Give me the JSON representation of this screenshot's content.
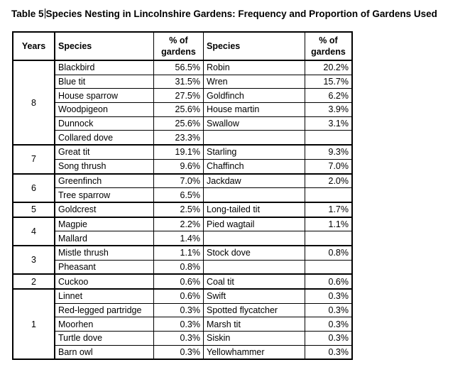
{
  "caption": {
    "prefix": "Table 5",
    "text": "Species Nesting in Lincolnshire Gardens: Frequency and Proportion of Gardens Used"
  },
  "headers": {
    "years": "Years",
    "species_left": "Species",
    "pct_left_line1": "% of",
    "pct_left_line2": "gardens",
    "species_right": "Species",
    "pct_right_line1": "% of",
    "pct_right_line2": "gardens"
  },
  "groups": [
    {
      "years": "8",
      "rows": [
        {
          "s1": "Blackbird",
          "p1": "56.5%",
          "s2": "Robin",
          "p2": "20.2%"
        },
        {
          "s1": "Blue tit",
          "p1": "31.5%",
          "s2": "Wren",
          "p2": "15.7%"
        },
        {
          "s1": "House sparrow",
          "p1": "27.5%",
          "s2": "Goldfinch",
          "p2": "6.2%"
        },
        {
          "s1": "Woodpigeon",
          "p1": "25.6%",
          "s2": "House martin",
          "p2": "3.9%"
        },
        {
          "s1": "Dunnock",
          "p1": "25.6%",
          "s2": "Swallow",
          "p2": "3.1%"
        },
        {
          "s1": "Collared dove",
          "p1": "23.3%",
          "s2": "",
          "p2": ""
        }
      ]
    },
    {
      "years": "7",
      "rows": [
        {
          "s1": "Great tit",
          "p1": "19.1%",
          "s2": "Starling",
          "p2": "9.3%"
        },
        {
          "s1": "Song thrush",
          "p1": "9.6%",
          "s2": "Chaffinch",
          "p2": "7.0%"
        }
      ]
    },
    {
      "years": "6",
      "rows": [
        {
          "s1": "Greenfinch",
          "p1": "7.0%",
          "s2": "Jackdaw",
          "p2": "2.0%"
        },
        {
          "s1": "Tree sparrow",
          "p1": "6.5%",
          "s2": "",
          "p2": ""
        }
      ]
    },
    {
      "years": "5",
      "rows": [
        {
          "s1": "Goldcrest",
          "p1": "2.5%",
          "s2": "Long-tailed tit",
          "p2": "1.7%"
        }
      ]
    },
    {
      "years": "4",
      "rows": [
        {
          "s1": "Magpie",
          "p1": "2.2%",
          "s2": "Pied wagtail",
          "p2": "1.1%"
        },
        {
          "s1": "Mallard",
          "p1": "1.4%",
          "s2": "",
          "p2": ""
        }
      ]
    },
    {
      "years": "3",
      "rows": [
        {
          "s1": "Mistle thrush",
          "p1": "1.1%",
          "s2": "Stock dove",
          "p2": "0.8%"
        },
        {
          "s1": "Pheasant",
          "p1": "0.8%",
          "s2": "",
          "p2": ""
        }
      ]
    },
    {
      "years": "2",
      "rows": [
        {
          "s1": "Cuckoo",
          "p1": "0.6%",
          "s2": "Coal tit",
          "p2": "0.6%"
        }
      ]
    },
    {
      "years": "1",
      "rows": [
        {
          "s1": "Linnet",
          "p1": "0.6%",
          "s2": "Swift",
          "p2": "0.3%"
        },
        {
          "s1": "Red-legged partridge",
          "p1": "0.3%",
          "s2": "Spotted flycatcher",
          "p2": "0.3%"
        },
        {
          "s1": "Moorhen",
          "p1": "0.3%",
          "s2": "Marsh tit",
          "p2": "0.3%"
        },
        {
          "s1": "Turtle dove",
          "p1": "0.3%",
          "s2": "Siskin",
          "p2": "0.3%"
        },
        {
          "s1": "Barn owl",
          "p1": "0.3%",
          "s2": "Yellowhammer",
          "p2": "0.3%"
        }
      ]
    }
  ]
}
